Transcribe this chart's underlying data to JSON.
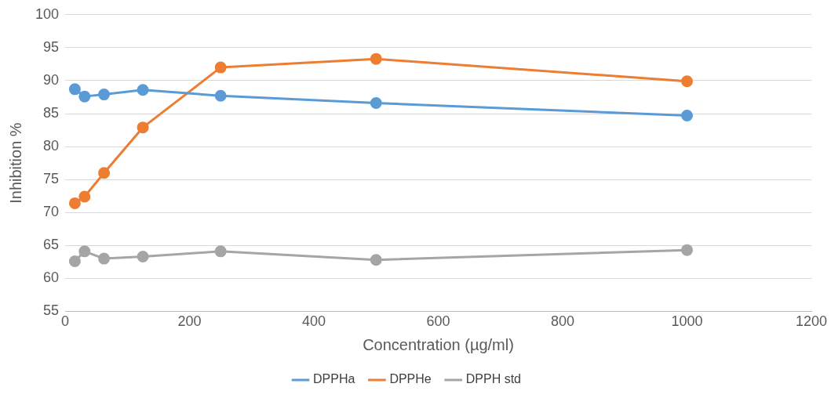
{
  "chart_data": {
    "type": "line",
    "xlabel": "Concentration (µg/ml)",
    "ylabel": "Inhibition %",
    "x": [
      15.6,
      31.25,
      62.5,
      125,
      250,
      500,
      1000
    ],
    "series": [
      {
        "name": "DPPHa",
        "color": "#5b9bd5",
        "values": [
          88.7,
          87.6,
          87.9,
          88.6,
          87.7,
          86.6,
          84.7
        ]
      },
      {
        "name": "DPPHe",
        "color": "#ed7d31",
        "values": [
          71.4,
          72.4,
          76.0,
          82.9,
          92.0,
          93.3,
          89.9
        ]
      },
      {
        "name": "DPPH std",
        "color": "#a5a5a5",
        "values": [
          62.6,
          64.1,
          63.0,
          63.3,
          64.1,
          62.8,
          64.3
        ]
      }
    ],
    "xlim": [
      0,
      1200
    ],
    "xticks": [
      0,
      200,
      400,
      600,
      800,
      1000,
      1200
    ],
    "ylim": [
      55,
      100
    ],
    "yticks": [
      55,
      60,
      65,
      70,
      75,
      80,
      85,
      90,
      95,
      100
    ],
    "grid": "y",
    "legend": "bottom",
    "marker": "circle",
    "line_style": "solid"
  }
}
